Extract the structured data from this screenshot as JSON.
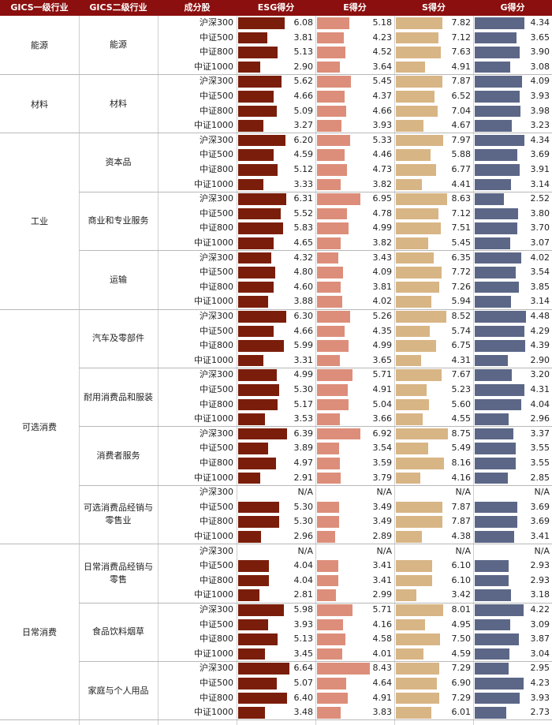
{
  "headers": [
    "GICS一级行业",
    "GICS二级行业",
    "成分股",
    "ESG得分",
    "E得分",
    "S得分",
    "G得分"
  ],
  "colors": {
    "header_bg": "#8b0f0f",
    "esg": "#7a1e0b",
    "e": "#dd8e7a",
    "s": "#d8b585",
    "g": "#5c6787"
  },
  "na": "N/A",
  "groups": [
    {
      "l1": "能源",
      "subs": [
        {
          "l2": "能源",
          "rows": [
            {
              "idx": "沪深300",
              "esg": 6.08,
              "e": 5.18,
              "s": 7.82,
              "g": 4.34
            },
            {
              "idx": "中证500",
              "esg": 3.81,
              "e": 4.23,
              "s": 7.12,
              "g": 3.65
            },
            {
              "idx": "中证800",
              "esg": 5.13,
              "e": 4.52,
              "s": 7.63,
              "g": 3.9
            },
            {
              "idx": "中证1000",
              "esg": 2.9,
              "e": 3.64,
              "s": 4.91,
              "g": 3.08
            }
          ]
        }
      ]
    },
    {
      "l1": "材料",
      "subs": [
        {
          "l2": "材料",
          "rows": [
            {
              "idx": "沪深300",
              "esg": 5.62,
              "e": 5.45,
              "s": 7.87,
              "g": 4.09
            },
            {
              "idx": "中证500",
              "esg": 4.66,
              "e": 4.37,
              "s": 6.52,
              "g": 3.93
            },
            {
              "idx": "中证800",
              "esg": 5.09,
              "e": 4.66,
              "s": 7.04,
              "g": 3.98
            },
            {
              "idx": "中证1000",
              "esg": 3.27,
              "e": 3.93,
              "s": 4.67,
              "g": 3.23
            }
          ]
        }
      ]
    },
    {
      "l1": "工业",
      "subs": [
        {
          "l2": "资本品",
          "rows": [
            {
              "idx": "沪深300",
              "esg": 6.2,
              "e": 5.33,
              "s": 7.97,
              "g": 4.34
            },
            {
              "idx": "中证500",
              "esg": 4.59,
              "e": 4.46,
              "s": 5.88,
              "g": 3.69
            },
            {
              "idx": "中证800",
              "esg": 5.12,
              "e": 4.73,
              "s": 6.77,
              "g": 3.91
            },
            {
              "idx": "中证1000",
              "esg": 3.33,
              "e": 3.82,
              "s": 4.41,
              "g": 3.14
            }
          ]
        },
        {
          "l2": "商业和专业服务",
          "rows": [
            {
              "idx": "沪深300",
              "esg": 6.31,
              "e": 6.95,
              "s": 8.63,
              "g": 2.52
            },
            {
              "idx": "中证500",
              "esg": 5.52,
              "e": 4.78,
              "s": 7.12,
              "g": 3.8
            },
            {
              "idx": "中证800",
              "esg": 5.83,
              "e": 4.99,
              "s": 7.51,
              "g": 3.7
            },
            {
              "idx": "中证1000",
              "esg": 4.65,
              "e": 3.82,
              "s": 5.45,
              "g": 3.07
            }
          ]
        },
        {
          "l2": "运输",
          "rows": [
            {
              "idx": "沪深300",
              "esg": 4.32,
              "e": 3.43,
              "s": 6.35,
              "g": 4.02
            },
            {
              "idx": "中证500",
              "esg": 4.8,
              "e": 4.09,
              "s": 7.72,
              "g": 3.54
            },
            {
              "idx": "中证800",
              "esg": 4.6,
              "e": 3.81,
              "s": 7.26,
              "g": 3.85
            },
            {
              "idx": "中证1000",
              "esg": 3.88,
              "e": 4.02,
              "s": 5.94,
              "g": 3.14
            }
          ]
        }
      ]
    },
    {
      "l1": "可选消费",
      "subs": [
        {
          "l2": "汽车及零部件",
          "rows": [
            {
              "idx": "沪深300",
              "esg": 6.3,
              "e": 5.26,
              "s": 8.52,
              "g": 4.48
            },
            {
              "idx": "中证500",
              "esg": 4.66,
              "e": 4.35,
              "s": 5.74,
              "g": 4.29
            },
            {
              "idx": "中证800",
              "esg": 5.99,
              "e": 4.99,
              "s": 6.75,
              "g": 4.39
            },
            {
              "idx": "中证1000",
              "esg": 3.31,
              "e": 3.65,
              "s": 4.31,
              "g": 2.9
            }
          ]
        },
        {
          "l2": "耐用消费品和服装",
          "rows": [
            {
              "idx": "沪深300",
              "esg": 4.99,
              "e": 5.71,
              "s": 7.67,
              "g": 3.2
            },
            {
              "idx": "中证500",
              "esg": 5.3,
              "e": 4.91,
              "s": 5.23,
              "g": 4.31
            },
            {
              "idx": "中证800",
              "esg": 5.17,
              "e": 5.04,
              "s": 5.6,
              "g": 4.04
            },
            {
              "idx": "中证1000",
              "esg": 3.53,
              "e": 3.66,
              "s": 4.55,
              "g": 2.96
            }
          ]
        },
        {
          "l2": "消费者服务",
          "rows": [
            {
              "idx": "沪深300",
              "esg": 6.39,
              "e": 6.92,
              "s": 8.75,
              "g": 3.37
            },
            {
              "idx": "中证500",
              "esg": 3.89,
              "e": 3.54,
              "s": 5.49,
              "g": 3.55
            },
            {
              "idx": "中证800",
              "esg": 4.97,
              "e": 3.59,
              "s": 8.16,
              "g": 3.55
            },
            {
              "idx": "中证1000",
              "esg": 2.91,
              "e": 3.79,
              "s": 4.16,
              "g": 2.85
            }
          ]
        },
        {
          "l2": "可选消费品经销与零售业",
          "rows": [
            {
              "idx": "沪深300",
              "esg": null,
              "e": null,
              "s": null,
              "g": null
            },
            {
              "idx": "中证500",
              "esg": 5.3,
              "e": 3.49,
              "s": 7.87,
              "g": 3.69
            },
            {
              "idx": "中证800",
              "esg": 5.3,
              "e": 3.49,
              "s": 7.87,
              "g": 3.69
            },
            {
              "idx": "中证1000",
              "esg": 2.96,
              "e": 2.89,
              "s": 4.38,
              "g": 3.41
            }
          ]
        }
      ]
    },
    {
      "l1": "日常消费",
      "subs": [
        {
          "l2": "日常消费品经销与零售",
          "rows": [
            {
              "idx": "沪深300",
              "esg": null,
              "e": null,
              "s": null,
              "g": null
            },
            {
              "idx": "中证500",
              "esg": 4.04,
              "e": 3.41,
              "s": 6.1,
              "g": 2.93
            },
            {
              "idx": "中证800",
              "esg": 4.04,
              "e": 3.41,
              "s": 6.1,
              "g": 2.93
            },
            {
              "idx": "中证1000",
              "esg": 2.81,
              "e": 2.99,
              "s": 3.42,
              "g": 3.18
            }
          ]
        },
        {
          "l2": "食品饮料烟草",
          "rows": [
            {
              "idx": "沪深300",
              "esg": 5.98,
              "e": 5.71,
              "s": 8.01,
              "g": 4.22
            },
            {
              "idx": "中证500",
              "esg": 3.93,
              "e": 4.16,
              "s": 4.95,
              "g": 3.09
            },
            {
              "idx": "中证800",
              "esg": 5.13,
              "e": 4.58,
              "s": 7.5,
              "g": 3.87
            },
            {
              "idx": "中证1000",
              "esg": 3.45,
              "e": 4.01,
              "s": 4.59,
              "g": 3.04
            }
          ]
        },
        {
          "l2": "家庭与个人用品",
          "rows": [
            {
              "idx": "沪深300",
              "esg": 6.64,
              "e": 8.43,
              "s": 7.29,
              "g": 2.95
            },
            {
              "idx": "中证500",
              "esg": 5.07,
              "e": 4.64,
              "s": 6.9,
              "g": 4.23
            },
            {
              "idx": "中证800",
              "esg": 6.4,
              "e": 4.91,
              "s": 7.29,
              "g": 3.93
            },
            {
              "idx": "中证1000",
              "esg": 3.48,
              "e": 3.83,
              "s": 6.01,
              "g": 2.73
            }
          ]
        }
      ]
    }
  ]
}
